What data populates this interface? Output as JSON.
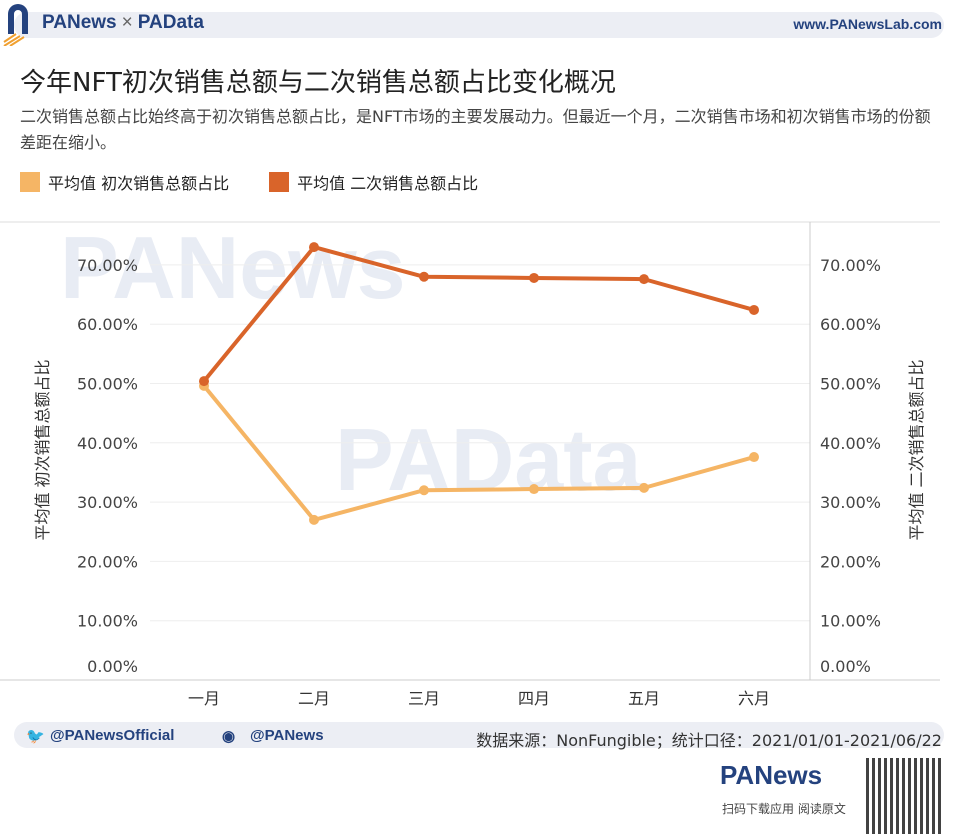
{
  "header": {
    "brand_left": "PANews",
    "brand_sep": "×",
    "brand_right": "PAData",
    "website": "www.PANewsLab.com"
  },
  "title": "今年NFT初次销售总额与二次销售总额占比变化概况",
  "subtitle": "二次销售总额占比始终高于初次销售总额占比，是NFT市场的主要发展动力。但最近一个月，二次销售市场和初次销售市场的份额差距在缩小。",
  "watermarks": [
    "PANews",
    "PAData"
  ],
  "chart_data": {
    "type": "line",
    "categories": [
      "一月",
      "二月",
      "三月",
      "四月",
      "五月",
      "六月"
    ],
    "series": [
      {
        "name": "平均值 初次销售总额占比",
        "color": "#f5b565",
        "axis": "left",
        "values": [
          49.6,
          27.0,
          32.0,
          32.2,
          32.4,
          37.6
        ]
      },
      {
        "name": "平均值 二次销售总额占比",
        "color": "#d9642a",
        "axis": "right",
        "values": [
          50.4,
          73.0,
          68.0,
          67.8,
          67.6,
          62.4
        ]
      }
    ],
    "ylabel_left": "平均值 初次销售总额占比",
    "ylabel_right": "平均值 二次销售总额占比",
    "yticks": [
      "0.00%",
      "10.00%",
      "20.00%",
      "30.00%",
      "40.00%",
      "50.00%",
      "60.00%",
      "70.00%"
    ],
    "ylim": [
      0,
      77
    ],
    "grid": true,
    "legend_position": "top-left"
  },
  "footer": {
    "twitter": "@PANewsOfficial",
    "weibo": "@PANews",
    "source": "数据来源：NonFungible；统计口径：2021/01/01-2021/06/22",
    "logo": "PANews",
    "scan_text": "扫码下载应用 阅读原文"
  }
}
